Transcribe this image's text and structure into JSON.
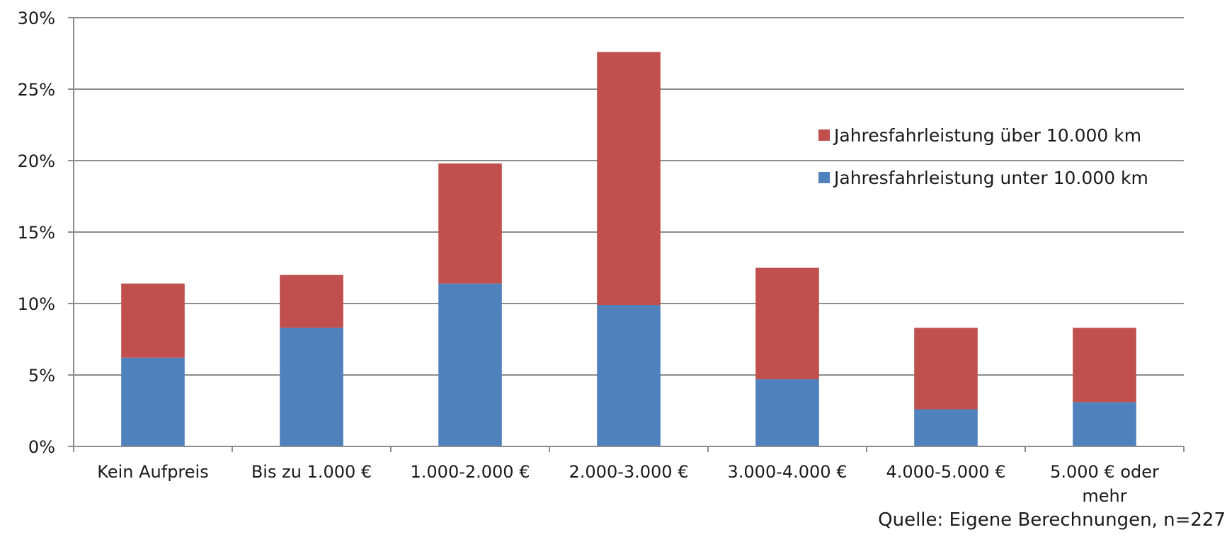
{
  "chart_data": {
    "type": "bar",
    "stacked": true,
    "categories": [
      [
        "Kein Aufpreis"
      ],
      [
        "Bis zu 1.000 €"
      ],
      [
        "1.000-2.000 €"
      ],
      [
        "2.000-3.000 €"
      ],
      [
        "3.000-4.000 €"
      ],
      [
        "4.000-5.000 €"
      ],
      [
        "5.000 € oder",
        "mehr"
      ]
    ],
    "series": [
      {
        "name": "Jahresfahrleistung unter 10.000 km",
        "color": "#4f81bd",
        "values": [
          6.2,
          8.3,
          11.4,
          9.9,
          4.7,
          2.6,
          3.1
        ]
      },
      {
        "name": "Jahresfahrleistung über 10.000 km",
        "color": "#c0504d",
        "values": [
          5.2,
          3.7,
          8.4,
          17.7,
          7.8,
          5.7,
          5.2
        ]
      }
    ],
    "ylim": [
      0,
      30
    ],
    "yticks": [
      0,
      5,
      10,
      15,
      20,
      25,
      30
    ],
    "ytick_suffix": "%",
    "grid": true,
    "legend_position": "top-right",
    "legend_order": [
      "Jahresfahrleistung über 10.000 km",
      "Jahresfahrleistung unter 10.000 km"
    ]
  },
  "source_note": "Quelle: Eigene Berechnungen, n=227"
}
